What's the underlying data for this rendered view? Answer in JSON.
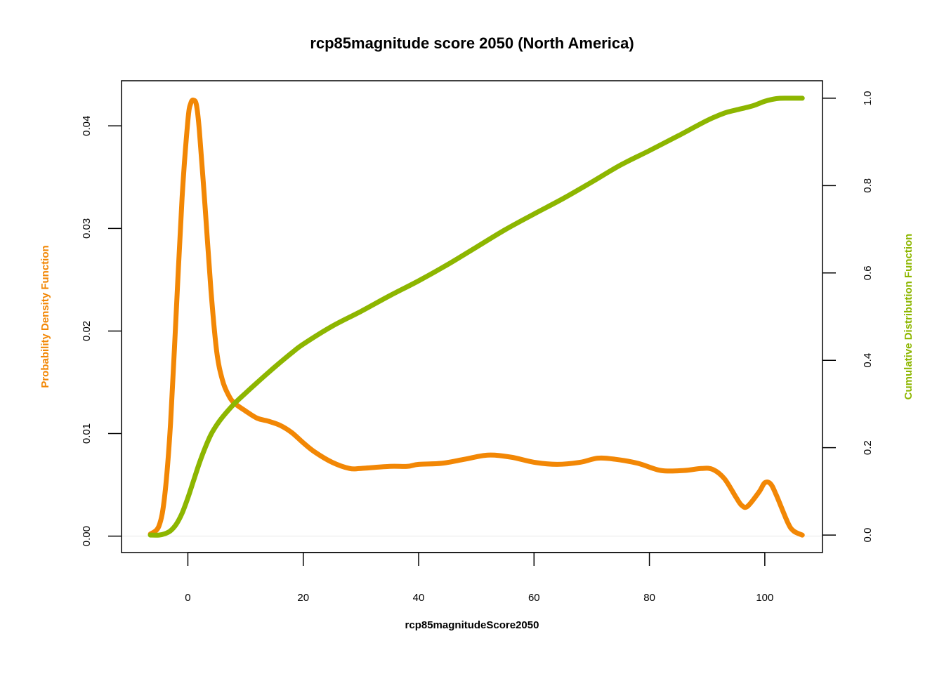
{
  "chart_data": {
    "type": "line",
    "title": "rcp85magnitude score 2050 (North America)",
    "xlabel": "rcp85magnitudeScore2050",
    "ylabel_left": "Probability Density Function",
    "ylabel_right": "Cumulative Distribution Function",
    "xlim": [
      -11.5,
      110
    ],
    "ylim_left": [
      -0.0016,
      0.0444
    ],
    "ylim_right": [
      -0.04,
      1.04
    ],
    "x_ticks": [
      "0",
      "20",
      "40",
      "60",
      "80",
      "100"
    ],
    "x_tick_values": [
      0,
      20,
      40,
      60,
      80,
      100
    ],
    "y_left_ticks": [
      "0.00",
      "0.01",
      "0.02",
      "0.03",
      "0.04"
    ],
    "y_left_tick_values": [
      0,
      0.01,
      0.02,
      0.03,
      0.04
    ],
    "y_right_ticks": [
      "0.0",
      "0.2",
      "0.4",
      "0.6",
      "0.8",
      "1.0"
    ],
    "y_right_tick_values": [
      0,
      0.2,
      0.4,
      0.6,
      0.8,
      1.0
    ],
    "grid": false,
    "colors": {
      "pdf": "#F28705",
      "cdf": "#8DB600",
      "baseline": "#e8e8e8"
    },
    "series": [
      {
        "axis": "left",
        "x": [
          -6.5,
          -5,
          -4,
          -3,
          -2,
          -1,
          0,
          0.5,
          1,
          1.5,
          2,
          3,
          4,
          5,
          6,
          7,
          8,
          10,
          12,
          14,
          16,
          18,
          20,
          22,
          25,
          28,
          30,
          35,
          38,
          40,
          44,
          48,
          52,
          56,
          60,
          64,
          68,
          71,
          74,
          78,
          82,
          86,
          89,
          91,
          93,
          95,
          96,
          97,
          99,
          100,
          101,
          102,
          104,
          105,
          106.5
        ],
        "values": [
          0.0002,
          0.001,
          0.004,
          0.011,
          0.022,
          0.033,
          0.0405,
          0.0422,
          0.0425,
          0.042,
          0.0395,
          0.032,
          0.024,
          0.018,
          0.0152,
          0.0138,
          0.013,
          0.0122,
          0.0115,
          0.0112,
          0.0108,
          0.0101,
          0.0091,
          0.0082,
          0.0072,
          0.0066,
          0.0066,
          0.0068,
          0.0068,
          0.007,
          0.0071,
          0.0075,
          0.0079,
          0.0077,
          0.0072,
          0.007,
          0.0072,
          0.0076,
          0.0075,
          0.0071,
          0.0064,
          0.0064,
          0.0066,
          0.0065,
          0.0056,
          0.0038,
          0.003,
          0.0029,
          0.0043,
          0.0052,
          0.0051,
          0.004,
          0.0013,
          0.0005,
          0.0001
        ]
      },
      {
        "axis": "right",
        "x": [
          -6.5,
          -5,
          -4,
          -3,
          -2,
          -1,
          0,
          1,
          2,
          3,
          4,
          5,
          6,
          8,
          10,
          12,
          15,
          18,
          20,
          25,
          30,
          35,
          40,
          45,
          50,
          55,
          60,
          65,
          70,
          75,
          80,
          85,
          90,
          93,
          95,
          98,
          100,
          102,
          104,
          106.5
        ],
        "values": [
          0.0,
          0.0,
          0.003,
          0.01,
          0.025,
          0.05,
          0.085,
          0.125,
          0.165,
          0.2,
          0.23,
          0.252,
          0.27,
          0.3,
          0.325,
          0.349,
          0.384,
          0.417,
          0.437,
          0.478,
          0.512,
          0.548,
          0.582,
          0.619,
          0.659,
          0.699,
          0.735,
          0.77,
          0.808,
          0.847,
          0.88,
          0.914,
          0.949,
          0.966,
          0.973,
          0.983,
          0.993,
          0.999,
          1.0,
          1.0
        ]
      }
    ]
  }
}
